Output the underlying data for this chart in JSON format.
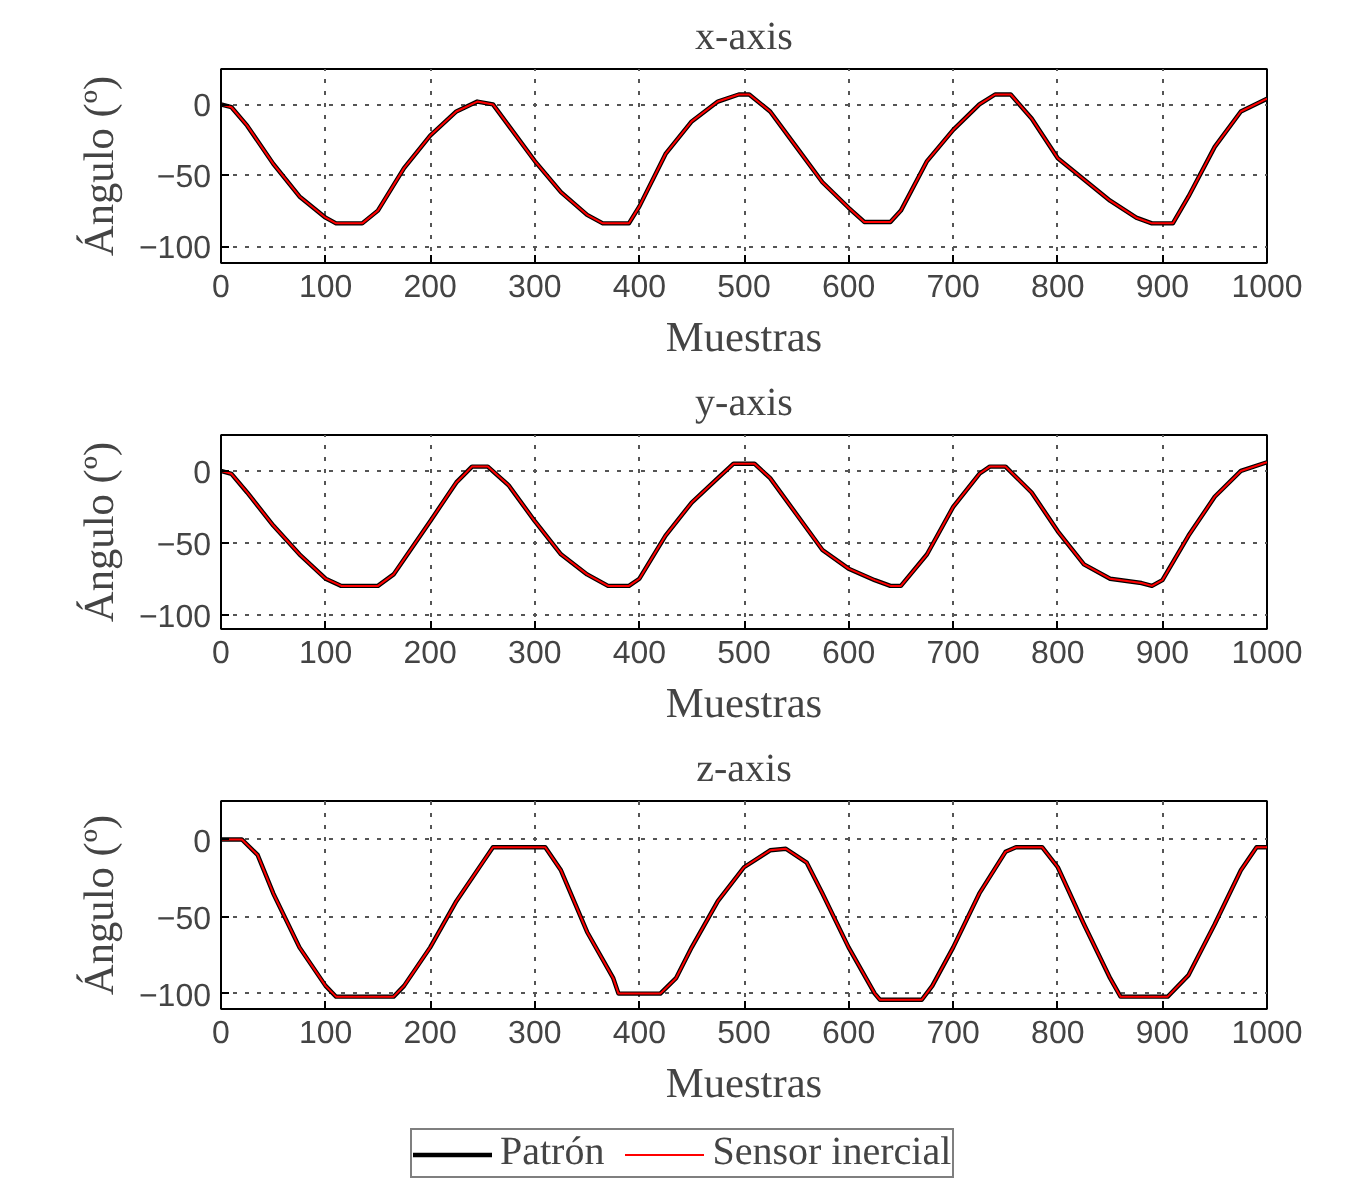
{
  "chart_data": [
    {
      "type": "line",
      "title": "x-axis",
      "xlabel": "Muestras",
      "ylabel": "Ángulo (º)",
      "xlim": [
        0,
        1000
      ],
      "ylim": [
        -112,
        25
      ],
      "xticks": [
        0,
        100,
        200,
        300,
        400,
        500,
        600,
        700,
        800,
        900,
        1000
      ],
      "yticks": [
        -100,
        -50,
        0
      ],
      "grid": true,
      "legend": false,
      "line_style": "solid",
      "x": [
        0,
        10,
        25,
        50,
        75,
        100,
        110,
        135,
        150,
        175,
        200,
        225,
        245,
        260,
        275,
        300,
        325,
        350,
        365,
        390,
        400,
        425,
        450,
        475,
        495,
        505,
        525,
        550,
        575,
        600,
        615,
        640,
        650,
        675,
        700,
        725,
        740,
        755,
        775,
        800,
        825,
        850,
        875,
        890,
        910,
        925,
        950,
        975,
        1000
      ],
      "series": [
        {
          "color": "#000000",
          "values": [
            0,
            -2,
            -15,
            -42,
            -65,
            -80,
            -84,
            -84,
            -75,
            -45,
            -22,
            -5,
            2,
            0,
            -15,
            -40,
            -62,
            -78,
            -84,
            -84,
            -72,
            -35,
            -12,
            2,
            7,
            7,
            -5,
            -30,
            -55,
            -73,
            -83,
            -83,
            -75,
            -40,
            -18,
            0,
            7,
            7,
            -10,
            -38,
            -53,
            -68,
            -80,
            -84,
            -84,
            -65,
            -30,
            -5,
            4
          ]
        },
        {
          "color": "#ff0000",
          "values": [
            0,
            -2,
            -15,
            -42,
            -65,
            -80,
            -84,
            -84,
            -75,
            -45,
            -22,
            -5,
            2,
            0,
            -15,
            -40,
            -62,
            -78,
            -84,
            -84,
            -72,
            -35,
            -12,
            2,
            7,
            7,
            -5,
            -30,
            -55,
            -73,
            -83,
            -83,
            -75,
            -40,
            -18,
            0,
            7,
            7,
            -10,
            -38,
            -53,
            -68,
            -80,
            -84,
            -84,
            -65,
            -30,
            -5,
            4
          ]
        }
      ]
    },
    {
      "type": "line",
      "title": "y-axis",
      "xlabel": "Muestras",
      "ylabel": "Ángulo (º)",
      "xlim": [
        0,
        1000
      ],
      "ylim": [
        -110,
        25
      ],
      "xticks": [
        0,
        100,
        200,
        300,
        400,
        500,
        600,
        700,
        800,
        900,
        1000
      ],
      "yticks": [
        -100,
        -50,
        0
      ],
      "grid": true,
      "legend": false,
      "line_style": "solid",
      "x": [
        0,
        10,
        25,
        50,
        75,
        100,
        115,
        150,
        165,
        200,
        225,
        240,
        255,
        275,
        300,
        325,
        350,
        370,
        390,
        400,
        425,
        450,
        475,
        490,
        510,
        525,
        550,
        575,
        600,
        625,
        640,
        650,
        675,
        700,
        725,
        735,
        750,
        775,
        800,
        825,
        850,
        880,
        890,
        900,
        925,
        950,
        975,
        1000
      ],
      "series": [
        {
          "color": "#000000",
          "values": [
            0,
            -2,
            -15,
            -38,
            -58,
            -75,
            -80,
            -80,
            -72,
            -35,
            -8,
            3,
            3,
            -10,
            -35,
            -58,
            -72,
            -80,
            -80,
            -75,
            -45,
            -22,
            -5,
            5,
            5,
            -5,
            -30,
            -55,
            -68,
            -76,
            -80,
            -80,
            -58,
            -25,
            -2,
            3,
            3,
            -15,
            -42,
            -65,
            -75,
            -78,
            -80,
            -76,
            -45,
            -18,
            0,
            6
          ]
        },
        {
          "color": "#ff0000",
          "values": [
            0,
            -2,
            -15,
            -38,
            -58,
            -75,
            -80,
            -80,
            -72,
            -35,
            -8,
            3,
            3,
            -10,
            -35,
            -58,
            -72,
            -80,
            -80,
            -75,
            -45,
            -22,
            -5,
            5,
            5,
            -5,
            -30,
            -55,
            -68,
            -76,
            -80,
            -80,
            -58,
            -25,
            -2,
            3,
            3,
            -15,
            -42,
            -65,
            -75,
            -78,
            -80,
            -76,
            -45,
            -18,
            0,
            6
          ]
        }
      ]
    },
    {
      "type": "line",
      "title": "z-axis",
      "xlabel": "Muestras",
      "ylabel": "Ángulo (º)",
      "xlim": [
        0,
        1000
      ],
      "ylim": [
        -110,
        25
      ],
      "xticks": [
        0,
        100,
        200,
        300,
        400,
        500,
        600,
        700,
        800,
        900,
        1000
      ],
      "yticks": [
        -100,
        -50,
        0
      ],
      "grid": true,
      "legend": "bottom",
      "line_style": "solid",
      "x": [
        0,
        20,
        35,
        50,
        75,
        100,
        110,
        165,
        175,
        200,
        225,
        250,
        260,
        310,
        325,
        350,
        375,
        380,
        420,
        435,
        450,
        475,
        500,
        525,
        540,
        560,
        575,
        600,
        625,
        630,
        670,
        680,
        700,
        725,
        750,
        760,
        785,
        800,
        825,
        850,
        860,
        905,
        925,
        950,
        975,
        990,
        1000
      ],
      "series": [
        {
          "name": "Patrón",
          "color": "#000000",
          "values": [
            0,
            0,
            -10,
            -35,
            -70,
            -95,
            -102,
            -102,
            -95,
            -70,
            -40,
            -15,
            -5,
            -5,
            -20,
            -60,
            -90,
            -100,
            -100,
            -90,
            -70,
            -40,
            -18,
            -7,
            -6,
            -15,
            -35,
            -70,
            -100,
            -104,
            -104,
            -95,
            -70,
            -35,
            -8,
            -5,
            -5,
            -18,
            -55,
            -90,
            -102,
            -102,
            -88,
            -55,
            -20,
            -5,
            -5
          ]
        },
        {
          "name": "Sensor inercial",
          "color": "#ff0000",
          "values": [
            0,
            0,
            -10,
            -35,
            -70,
            -95,
            -102,
            -102,
            -95,
            -70,
            -40,
            -15,
            -5,
            -5,
            -20,
            -60,
            -90,
            -100,
            -100,
            -90,
            -70,
            -40,
            -18,
            -7,
            -6,
            -15,
            -35,
            -70,
            -100,
            -104,
            -104,
            -95,
            -70,
            -35,
            -8,
            -5,
            -5,
            -18,
            -55,
            -90,
            -102,
            -102,
            -88,
            -55,
            -20,
            -5,
            -5
          ]
        }
      ]
    }
  ]
}
